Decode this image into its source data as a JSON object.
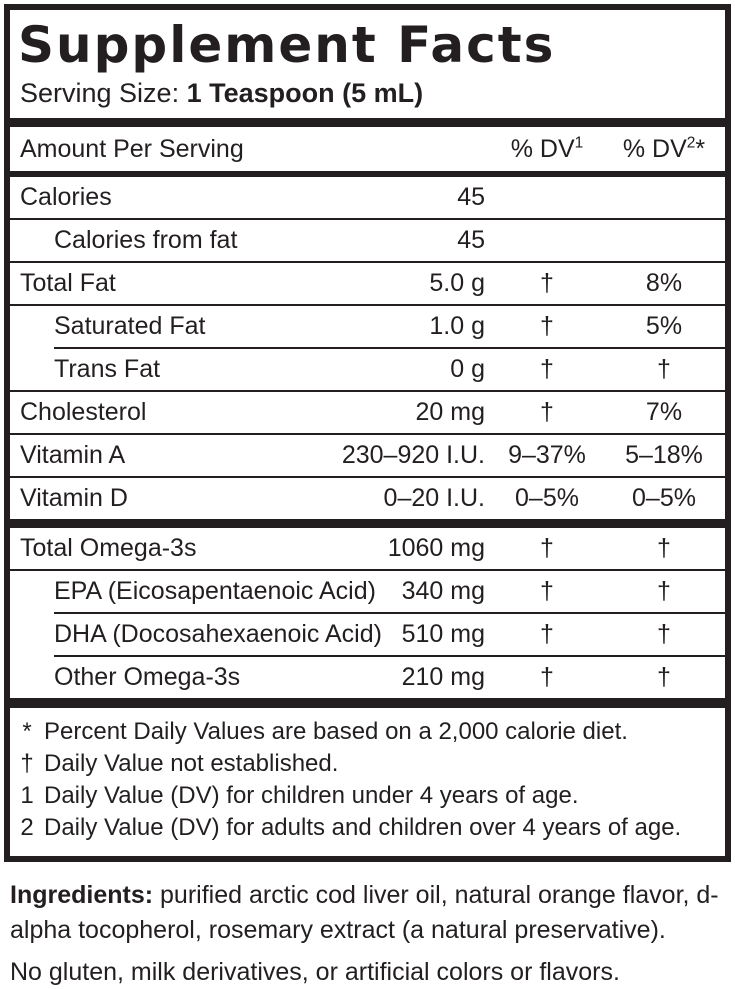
{
  "title": "Supplement Facts",
  "serving": {
    "label": "Serving Size:",
    "value": "1 Teaspoon (5 mL)"
  },
  "header": {
    "amount_label": "Amount Per Serving",
    "dv1": {
      "label": "% DV",
      "sup": "1",
      "suffix": ""
    },
    "dv2": {
      "label": "% DV",
      "sup": "2",
      "suffix": "*"
    }
  },
  "rows": [
    {
      "name": "Calories",
      "amount": "45",
      "dv1": "",
      "dv2": ""
    },
    {
      "name": "Calories from fat",
      "amount": "45",
      "dv1": "",
      "dv2": ""
    },
    {
      "name": "Total Fat",
      "amount": "5.0 g",
      "dv1": "†",
      "dv2": "8%"
    },
    {
      "name": "Saturated Fat",
      "amount": "1.0 g",
      "dv1": "†",
      "dv2": "5%"
    },
    {
      "name": "Trans Fat",
      "amount": "0 g",
      "dv1": "†",
      "dv2": "†"
    },
    {
      "name": "Cholesterol",
      "amount": "20 mg",
      "dv1": "†",
      "dv2": "7%"
    },
    {
      "name": "Vitamin A",
      "amount": "230–920 I.U.",
      "dv1": "9–37%",
      "dv2": "5–18%"
    },
    {
      "name": "Vitamin D",
      "amount": "0–20 I.U.",
      "dv1": "0–5%",
      "dv2": "0–5%"
    },
    {
      "name": "Total Omega-3s",
      "amount": "1060 mg",
      "dv1": "†",
      "dv2": "†"
    },
    {
      "name": "EPA (Eicosapentaenoic Acid)",
      "amount": "340 mg",
      "dv1": "†",
      "dv2": "†"
    },
    {
      "name": "DHA (Docosahexaenoic Acid)",
      "amount": "510 mg",
      "dv1": "†",
      "dv2": "†"
    },
    {
      "name": "Other Omega-3s",
      "amount": "210 mg",
      "dv1": "†",
      "dv2": "†"
    }
  ],
  "footnotes": [
    {
      "symbol": "*",
      "text": "Percent Daily Values are based on a 2,000 calorie diet."
    },
    {
      "symbol": "†",
      "text": "Daily Value not established."
    },
    {
      "symbol": "1",
      "text": "Daily Value (DV) for children under 4 years of age."
    },
    {
      "symbol": "2",
      "text": "Daily Value (DV) for adults and children over 4 years of age."
    }
  ],
  "ingredients": {
    "label": "Ingredients:",
    "text": " purified arctic cod liver oil, natural orange flavor, d-alpha tocopherol, rosemary extract (a natural preservative)."
  },
  "allergen_note": "No gluten, milk derivatives, or artificial colors or flavors.",
  "colors": {
    "text": "#231f20",
    "background": "#ffffff"
  }
}
